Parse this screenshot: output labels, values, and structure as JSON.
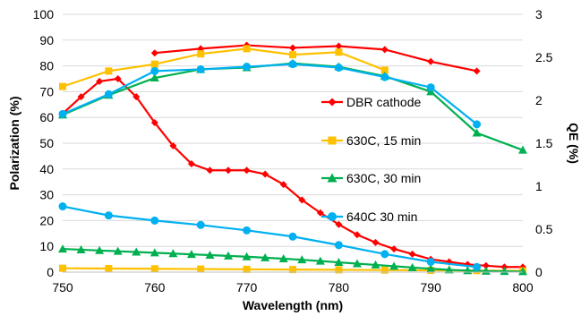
{
  "chart_data": {
    "type": "line",
    "title": "",
    "xlabel": "Wavelength (nm)",
    "ylabel": "Polarization (%)",
    "y2label": "QE (%)",
    "xlim": [
      750,
      800
    ],
    "ylim": [
      0,
      100
    ],
    "y2lim": [
      0,
      3
    ],
    "x_ticks": [
      "750",
      "760",
      "770",
      "780",
      "790",
      "800"
    ],
    "x_tick_values": [
      750,
      760,
      770,
      780,
      790,
      800
    ],
    "y_ticks": [
      "0",
      "10",
      "20",
      "30",
      "40",
      "50",
      "60",
      "70",
      "80",
      "90",
      "100"
    ],
    "y_tick_values": [
      0,
      10,
      20,
      30,
      40,
      50,
      60,
      70,
      80,
      90,
      100
    ],
    "y2_ticks": [
      "0",
      "0.5",
      "1",
      "1.5",
      "2",
      "2.5",
      "3"
    ],
    "y2_tick_values": [
      0,
      0.5,
      1,
      1.5,
      2,
      2.5,
      3
    ],
    "grid": "horizontal",
    "legend_position": "inline, right-center",
    "series": [
      {
        "name": "DBR cathode",
        "color": "#ff0000",
        "marker": "diamond",
        "axis": "left",
        "x": [
          750,
          752,
          754,
          756,
          758,
          760,
          762,
          764,
          766,
          768,
          770,
          772,
          774,
          776,
          778,
          780,
          782,
          784,
          786,
          788,
          790,
          792,
          794,
          796,
          798,
          800
        ],
        "y": [
          61.5,
          68,
          74,
          75,
          68,
          58,
          49,
          42,
          39.5,
          39.5,
          39.5,
          38,
          34,
          28,
          23,
          18.5,
          14.5,
          11.5,
          9,
          7,
          5,
          4,
          3,
          2.5,
          2,
          2
        ]
      },
      {
        "name": "DBR cathode",
        "color": "#ff0000",
        "marker": "diamond",
        "axis": "right",
        "x": [
          760,
          765,
          770,
          775,
          780,
          785,
          790,
          795
        ],
        "y": [
          2.55,
          2.6,
          2.64,
          2.61,
          2.63,
          2.59,
          2.45,
          2.34
        ]
      },
      {
        "name": "630C, 15 min",
        "color": "#ffc000",
        "marker": "square",
        "axis": "left",
        "x": [
          750,
          755,
          760,
          765,
          770,
          775,
          780,
          785,
          790,
          795,
          800
        ],
        "y": [
          1.5,
          1.4,
          1.3,
          1.2,
          1.1,
          1.0,
          0.9,
          0.8,
          0.7,
          0.6,
          0.5
        ]
      },
      {
        "name": "630C, 15 min",
        "color": "#ffc000",
        "marker": "square",
        "axis": "right",
        "x": [
          750,
          755,
          760,
          765,
          770,
          775,
          780,
          785
        ],
        "y": [
          2.16,
          2.34,
          2.42,
          2.54,
          2.6,
          2.53,
          2.56,
          2.35
        ]
      },
      {
        "name": "630C, 30 min",
        "color": "#00b050",
        "marker": "triangle",
        "axis": "left",
        "x": [
          750,
          752,
          754,
          756,
          758,
          760,
          762,
          764,
          766,
          768,
          770,
          772,
          774,
          776,
          778,
          780,
          782,
          784,
          786,
          788,
          790,
          792,
          794,
          796,
          798,
          800
        ],
        "y": [
          9,
          8.7,
          8.4,
          8.1,
          7.8,
          7.5,
          7.2,
          6.9,
          6.6,
          6.3,
          6.0,
          5.6,
          5.2,
          4.8,
          4.3,
          3.8,
          3.3,
          2.8,
          2.3,
          1.8,
          1.3,
          0.9,
          0.6,
          0.4,
          0.3,
          0.2
        ]
      },
      {
        "name": "630C, 30 min",
        "color": "#00b050",
        "marker": "triangle",
        "axis": "right",
        "x": [
          750,
          755,
          760,
          765,
          770,
          775,
          780,
          785,
          790,
          795,
          800
        ],
        "y": [
          1.83,
          2.06,
          2.26,
          2.36,
          2.38,
          2.43,
          2.39,
          2.28,
          2.1,
          1.62,
          1.42
        ]
      },
      {
        "name": "640C 30 min",
        "color": "#00b0f0",
        "marker": "circle",
        "axis": "left",
        "x": [
          750,
          755,
          760,
          765,
          770,
          775,
          780,
          785,
          790,
          795
        ],
        "y": [
          25.5,
          22,
          20,
          18.3,
          16.2,
          13.8,
          10.5,
          7,
          4,
          2
        ]
      },
      {
        "name": "640C 30 min",
        "color": "#00b0f0",
        "marker": "circle",
        "axis": "right",
        "x": [
          750,
          755,
          760,
          765,
          770,
          775,
          780,
          785,
          790,
          795
        ],
        "y": [
          1.84,
          2.07,
          2.34,
          2.36,
          2.39,
          2.42,
          2.38,
          2.27,
          2.15,
          1.72
        ]
      }
    ],
    "legend": [
      {
        "label": "DBR cathode",
        "color": "#ff0000",
        "marker": "diamond"
      },
      {
        "label": "630C, 15 min",
        "color": "#ffc000",
        "marker": "square"
      },
      {
        "label": "630C, 30 min",
        "color": "#00b050",
        "marker": "triangle"
      },
      {
        "label": "640C 30 min",
        "color": "#00b0f0",
        "marker": "circle"
      }
    ]
  }
}
